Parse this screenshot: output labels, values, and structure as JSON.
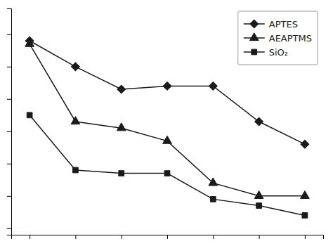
{
  "chart_data": {
    "type": "line",
    "x": [
      1,
      2,
      3,
      4,
      5,
      6,
      7
    ],
    "series": [
      {
        "name": "APTES",
        "color": "#1a1a1a",
        "marker": "diamond",
        "values": [
          58,
          50,
          43,
          44,
          44,
          33,
          26
        ]
      },
      {
        "name": "AEAPTMS",
        "color": "#1a1a1a",
        "marker": "triangle",
        "values": [
          57,
          33,
          31,
          27,
          14,
          10,
          10
        ]
      },
      {
        "name": "SiO₂",
        "color": "#1a1a1a",
        "marker": "square",
        "values": [
          35,
          18,
          17,
          17,
          9,
          7,
          4
        ]
      }
    ],
    "xlim": [
      0.6,
      7.4
    ],
    "ylim": [
      -2,
      68
    ],
    "xticks": [
      1,
      2,
      3,
      4,
      5,
      6,
      7
    ],
    "yticks": [
      0,
      10,
      20,
      30,
      40,
      50,
      60
    ],
    "tick_labels": false,
    "grid": false,
    "legend": "upper right"
  }
}
